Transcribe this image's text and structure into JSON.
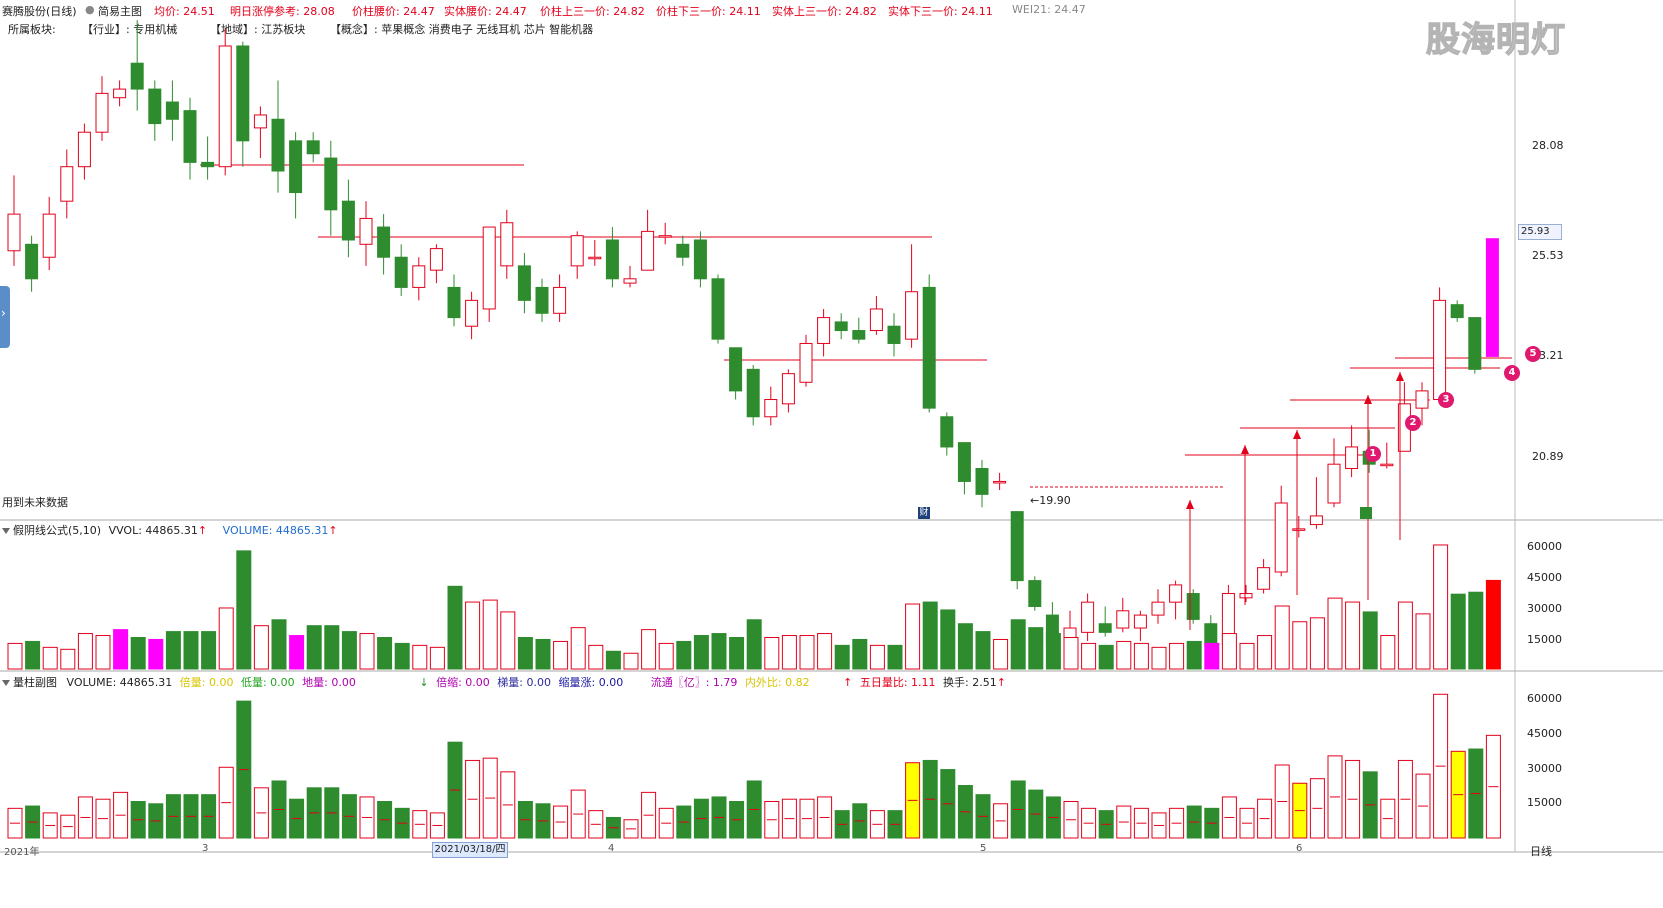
{
  "header": {
    "stock_title": "赛腾股份(日线)",
    "chart_mode": "简易主图",
    "avg_price": "均价: 24.51",
    "next_limit": "明日涨停参考: 28.08",
    "pillar_waist": "价柱腰价: 24.47",
    "body_waist": "实体腰价: 24.47",
    "pillar_upper_third": "价柱上三一价: 24.82",
    "pillar_lower_third": "价柱下三一价: 24.11",
    "body_upper_third": "实体上三一价: 24.82",
    "body_lower_third": "实体下三一价: 24.11",
    "wei21": "WEI21: 24.47",
    "arrow_up": "↑"
  },
  "sectors": {
    "label": "所属板块:",
    "industry": "【行业】: 专用机械",
    "region": "【地域】: 江苏板块",
    "concept": "【概念】: 苹果概念 消费电子 无线耳机 芯片 智能机器"
  },
  "watermark": "股海明灯",
  "main_panel": {
    "future_data_note": "用到未来数据",
    "current_price_box": "25.93",
    "low_label": "←19.90",
    "price_ticks": [
      "28.08",
      "25.53",
      "23.21",
      "20.89"
    ],
    "fin_marker": "财"
  },
  "vol_panel": {
    "title": "假阴线公式(5,10)",
    "vvol": "VVOL: 44865.31",
    "volume": "VOLUME: 44865.31",
    "ticks": [
      "60000",
      "45000",
      "30000",
      "15000"
    ]
  },
  "sub_panel": {
    "title": "量柱副图",
    "volume": "VOLUME: 44865.31",
    "high_vol": "倍量: 0.00",
    "low_vol": "低量: 0.00",
    "ground_vol": "地量: 0.00",
    "double_shrink": "倍缩: 0.00",
    "ladder": "梯量: 0.00",
    "shrink_up": "缩量涨: 0.00",
    "circulating": "流通〖亿〗: 1.79",
    "in_out_ratio": "内外比: 0.82",
    "five_day_ratio": "五日量比: 1.11",
    "turnover": "换手: 2.51",
    "ticks": [
      "60000",
      "45000",
      "30000",
      "15000"
    ]
  },
  "x_axis": {
    "labels": [
      "2021年",
      "3",
      "4",
      "5",
      "6"
    ],
    "highlight_date": "2021/03/18/四",
    "period": "日线"
  },
  "annotations": [
    "1",
    "2",
    "3",
    "4",
    "5"
  ],
  "colors": {
    "up": "#e3001b",
    "down": "#2e8b2e",
    "magenta": "#ff00ff",
    "yellow": "#ffff00"
  },
  "chart_data": {
    "type": "candlestick",
    "price_range": [
      19.0,
      30.0
    ],
    "volume_max": 64000,
    "candles": [
      {
        "o": 25.65,
        "c": 26.5,
        "h": 27.4,
        "l": 25.3,
        "v": 13000
      },
      {
        "o": 25.8,
        "c": 25.0,
        "h": 26.0,
        "l": 24.7,
        "v": 14000
      },
      {
        "o": 25.5,
        "c": 26.5,
        "h": 26.9,
        "l": 25.2,
        "v": 11000
      },
      {
        "o": 26.8,
        "c": 27.6,
        "h": 28.0,
        "l": 26.4,
        "v": 10000
      },
      {
        "o": 27.6,
        "c": 28.4,
        "h": 28.6,
        "l": 27.3,
        "v": 18000
      },
      {
        "o": 28.4,
        "c": 29.3,
        "h": 29.7,
        "l": 28.2,
        "v": 17000
      },
      {
        "o": 29.2,
        "c": 29.4,
        "h": 29.6,
        "l": 29.0,
        "v": 20000
      },
      {
        "o": 30.0,
        "c": 29.4,
        "h": 31.0,
        "l": 28.9,
        "v": 16000
      },
      {
        "o": 29.4,
        "c": 28.6,
        "h": 29.6,
        "l": 28.2,
        "v": 15000
      },
      {
        "o": 29.1,
        "c": 28.7,
        "h": 29.6,
        "l": 28.2,
        "v": 19000
      },
      {
        "o": 28.9,
        "c": 27.7,
        "h": 29.2,
        "l": 27.3,
        "v": 19000
      },
      {
        "o": 27.7,
        "c": 27.6,
        "h": 28.3,
        "l": 27.3,
        "v": 19000
      },
      {
        "o": 27.6,
        "c": 30.4,
        "h": 30.8,
        "l": 27.4,
        "v": 31000
      },
      {
        "o": 30.4,
        "c": 28.2,
        "h": 30.5,
        "l": 27.6,
        "v": 60000
      },
      {
        "o": 28.5,
        "c": 28.8,
        "h": 29.0,
        "l": 27.8,
        "v": 22000
      },
      {
        "o": 28.7,
        "c": 27.5,
        "h": 29.6,
        "l": 27.0,
        "v": 25000
      },
      {
        "o": 28.2,
        "c": 27.0,
        "h": 28.4,
        "l": 26.4,
        "v": 17000
      },
      {
        "o": 28.2,
        "c": 27.9,
        "h": 28.4,
        "l": 27.7,
        "v": 22000
      },
      {
        "o": 27.8,
        "c": 26.6,
        "h": 28.2,
        "l": 26.0,
        "v": 22000
      },
      {
        "o": 26.8,
        "c": 25.9,
        "h": 27.3,
        "l": 25.5,
        "v": 19000
      },
      {
        "o": 25.8,
        "c": 26.4,
        "h": 26.8,
        "l": 25.3,
        "v": 18000
      },
      {
        "o": 26.2,
        "c": 25.5,
        "h": 26.5,
        "l": 25.1,
        "v": 16000
      },
      {
        "o": 25.5,
        "c": 24.8,
        "h": 25.8,
        "l": 24.6,
        "v": 13000
      },
      {
        "o": 24.8,
        "c": 25.3,
        "h": 25.5,
        "l": 24.5,
        "v": 12000
      },
      {
        "o": 25.2,
        "c": 25.7,
        "h": 25.8,
        "l": 24.9,
        "v": 11000
      },
      {
        "o": 24.8,
        "c": 24.1,
        "h": 25.1,
        "l": 23.9,
        "v": 42000
      },
      {
        "o": 23.9,
        "c": 24.5,
        "h": 24.7,
        "l": 23.6,
        "v": 34000
      },
      {
        "o": 24.3,
        "c": 26.2,
        "h": 26.2,
        "l": 24.0,
        "v": 35000
      },
      {
        "o": 25.3,
        "c": 26.3,
        "h": 26.6,
        "l": 25.0,
        "v": 29000
      },
      {
        "o": 25.3,
        "c": 24.5,
        "h": 25.6,
        "l": 24.2,
        "v": 16000
      },
      {
        "o": 24.8,
        "c": 24.2,
        "h": 25.0,
        "l": 24.0,
        "v": 15000
      },
      {
        "o": 24.2,
        "c": 24.8,
        "h": 25.1,
        "l": 24.0,
        "v": 14000
      },
      {
        "o": 25.3,
        "c": 26.0,
        "h": 26.1,
        "l": 25.0,
        "v": 21000
      },
      {
        "o": 25.5,
        "c": 25.5,
        "h": 25.9,
        "l": 25.3,
        "v": 12000
      },
      {
        "o": 25.9,
        "c": 25.0,
        "h": 26.2,
        "l": 24.8,
        "v": 9000
      },
      {
        "o": 24.9,
        "c": 25.0,
        "h": 25.3,
        "l": 24.8,
        "v": 8000
      },
      {
        "o": 25.2,
        "c": 26.1,
        "h": 26.6,
        "l": 25.2,
        "v": 20000
      },
      {
        "o": 26.0,
        "c": 26.0,
        "h": 26.3,
        "l": 25.8,
        "v": 13000
      },
      {
        "o": 25.8,
        "c": 25.5,
        "h": 26.0,
        "l": 25.3,
        "v": 14000
      },
      {
        "o": 25.9,
        "c": 25.0,
        "h": 26.1,
        "l": 24.8,
        "v": 17000
      },
      {
        "o": 25.0,
        "c": 23.6,
        "h": 25.1,
        "l": 23.5,
        "v": 18000
      },
      {
        "o": 23.4,
        "c": 22.4,
        "h": 23.4,
        "l": 22.2,
        "v": 16000
      },
      {
        "o": 22.9,
        "c": 21.8,
        "h": 23.0,
        "l": 21.6,
        "v": 25000
      },
      {
        "o": 21.8,
        "c": 22.2,
        "h": 22.5,
        "l": 21.6,
        "v": 16000
      },
      {
        "o": 22.1,
        "c": 22.8,
        "h": 22.9,
        "l": 21.9,
        "v": 17000
      },
      {
        "o": 22.6,
        "c": 23.5,
        "h": 23.7,
        "l": 22.5,
        "v": 17000
      },
      {
        "o": 23.5,
        "c": 24.1,
        "h": 24.3,
        "l": 23.2,
        "v": 18000
      },
      {
        "o": 24.0,
        "c": 23.8,
        "h": 24.2,
        "l": 23.6,
        "v": 12000
      },
      {
        "o": 23.8,
        "c": 23.6,
        "h": 24.1,
        "l": 23.5,
        "v": 15000
      },
      {
        "o": 23.8,
        "c": 24.3,
        "h": 24.6,
        "l": 23.7,
        "v": 12000
      },
      {
        "o": 23.9,
        "c": 23.5,
        "h": 24.2,
        "l": 23.2,
        "v": 12000
      },
      {
        "o": 23.6,
        "c": 24.7,
        "h": 25.8,
        "l": 23.4,
        "v": 33000
      },
      {
        "o": 24.8,
        "c": 22.0,
        "h": 25.1,
        "l": 21.9,
        "v": 34000
      },
      {
        "o": 21.8,
        "c": 21.1,
        "h": 21.9,
        "l": 20.9,
        "v": 30000
      },
      {
        "o": 21.2,
        "c": 20.3,
        "h": 21.2,
        "l": 20.0,
        "v": 23000
      },
      {
        "o": 20.6,
        "c": 20.0,
        "h": 20.8,
        "l": 19.7,
        "v": 19000
      },
      {
        "o": 20.3,
        "c": 20.3,
        "h": 20.5,
        "l": 20.1,
        "v": 15000
      },
      {
        "o": 19.6,
        "c": 18.0,
        "h": 19.6,
        "l": 17.8,
        "v": 25000
      },
      {
        "o": 18.0,
        "c": 17.4,
        "h": 18.1,
        "l": 17.3,
        "v": 21000
      },
      {
        "o": 17.2,
        "c": 16.6,
        "h": 17.5,
        "l": 16.4,
        "v": 18000
      },
      {
        "o": 16.3,
        "c": 16.9,
        "h": 17.3,
        "l": 16.1,
        "v": 16000
      },
      {
        "o": 16.8,
        "c": 17.5,
        "h": 17.7,
        "l": 16.6,
        "v": 13000
      },
      {
        "o": 17.0,
        "c": 16.8,
        "h": 17.4,
        "l": 16.7,
        "v": 12000
      },
      {
        "o": 16.9,
        "c": 17.3,
        "h": 17.6,
        "l": 16.8,
        "v": 14000
      },
      {
        "o": 16.9,
        "c": 17.2,
        "h": 17.3,
        "l": 16.6,
        "v": 13000
      },
      {
        "o": 17.2,
        "c": 17.5,
        "h": 17.8,
        "l": 17.0,
        "v": 11000
      },
      {
        "o": 17.5,
        "c": 17.9,
        "h": 18.0,
        "l": 17.1,
        "v": 13000
      },
      {
        "o": 17.7,
        "c": 17.1,
        "h": 17.8,
        "l": 17.0,
        "v": 14000
      },
      {
        "o": 17.0,
        "c": 16.5,
        "h": 17.2,
        "l": 16.4,
        "v": 13000
      },
      {
        "o": 16.5,
        "c": 17.7,
        "h": 17.9,
        "l": 16.3,
        "v": 18000
      },
      {
        "o": 17.6,
        "c": 17.7,
        "h": 17.9,
        "l": 17.5,
        "v": 13000
      },
      {
        "o": 17.8,
        "c": 18.3,
        "h": 18.5,
        "l": 17.7,
        "v": 17000
      },
      {
        "o": 18.2,
        "c": 19.8,
        "h": 20.2,
        "l": 18.1,
        "v": 32000
      },
      {
        "o": 19.2,
        "c": 19.2,
        "h": 19.5,
        "l": 19.0,
        "v": 24000
      },
      {
        "o": 19.3,
        "c": 19.5,
        "h": 20.4,
        "l": 19.2,
        "v": 26000
      },
      {
        "o": 19.8,
        "c": 20.7,
        "h": 21.3,
        "l": 19.7,
        "v": 36000
      },
      {
        "o": 20.6,
        "c": 21.1,
        "h": 21.6,
        "l": 20.4,
        "v": 34000
      },
      {
        "o": 21.0,
        "c": 20.7,
        "h": 21.5,
        "l": 20.5,
        "v": 29000
      },
      {
        "o": 20.7,
        "c": 20.7,
        "h": 21.2,
        "l": 20.6,
        "v": 17000
      },
      {
        "o": 21.0,
        "c": 22.1,
        "h": 22.6,
        "l": 21.0,
        "v": 34000
      },
      {
        "o": 22.0,
        "c": 22.4,
        "h": 22.6,
        "l": 21.6,
        "v": 28000
      },
      {
        "o": 22.2,
        "c": 24.5,
        "h": 24.8,
        "l": 22.2,
        "v": 63000
      },
      {
        "o": 24.4,
        "c": 24.1,
        "h": 24.5,
        "l": 24.0,
        "v": 38000
      },
      {
        "o": 24.1,
        "c": 22.9,
        "h": 24.1,
        "l": 22.8,
        "v": 39000
      },
      {
        "o": 23.2,
        "c": 25.93,
        "h": 25.93,
        "l": 23.2,
        "v": 45000
      }
    ]
  }
}
